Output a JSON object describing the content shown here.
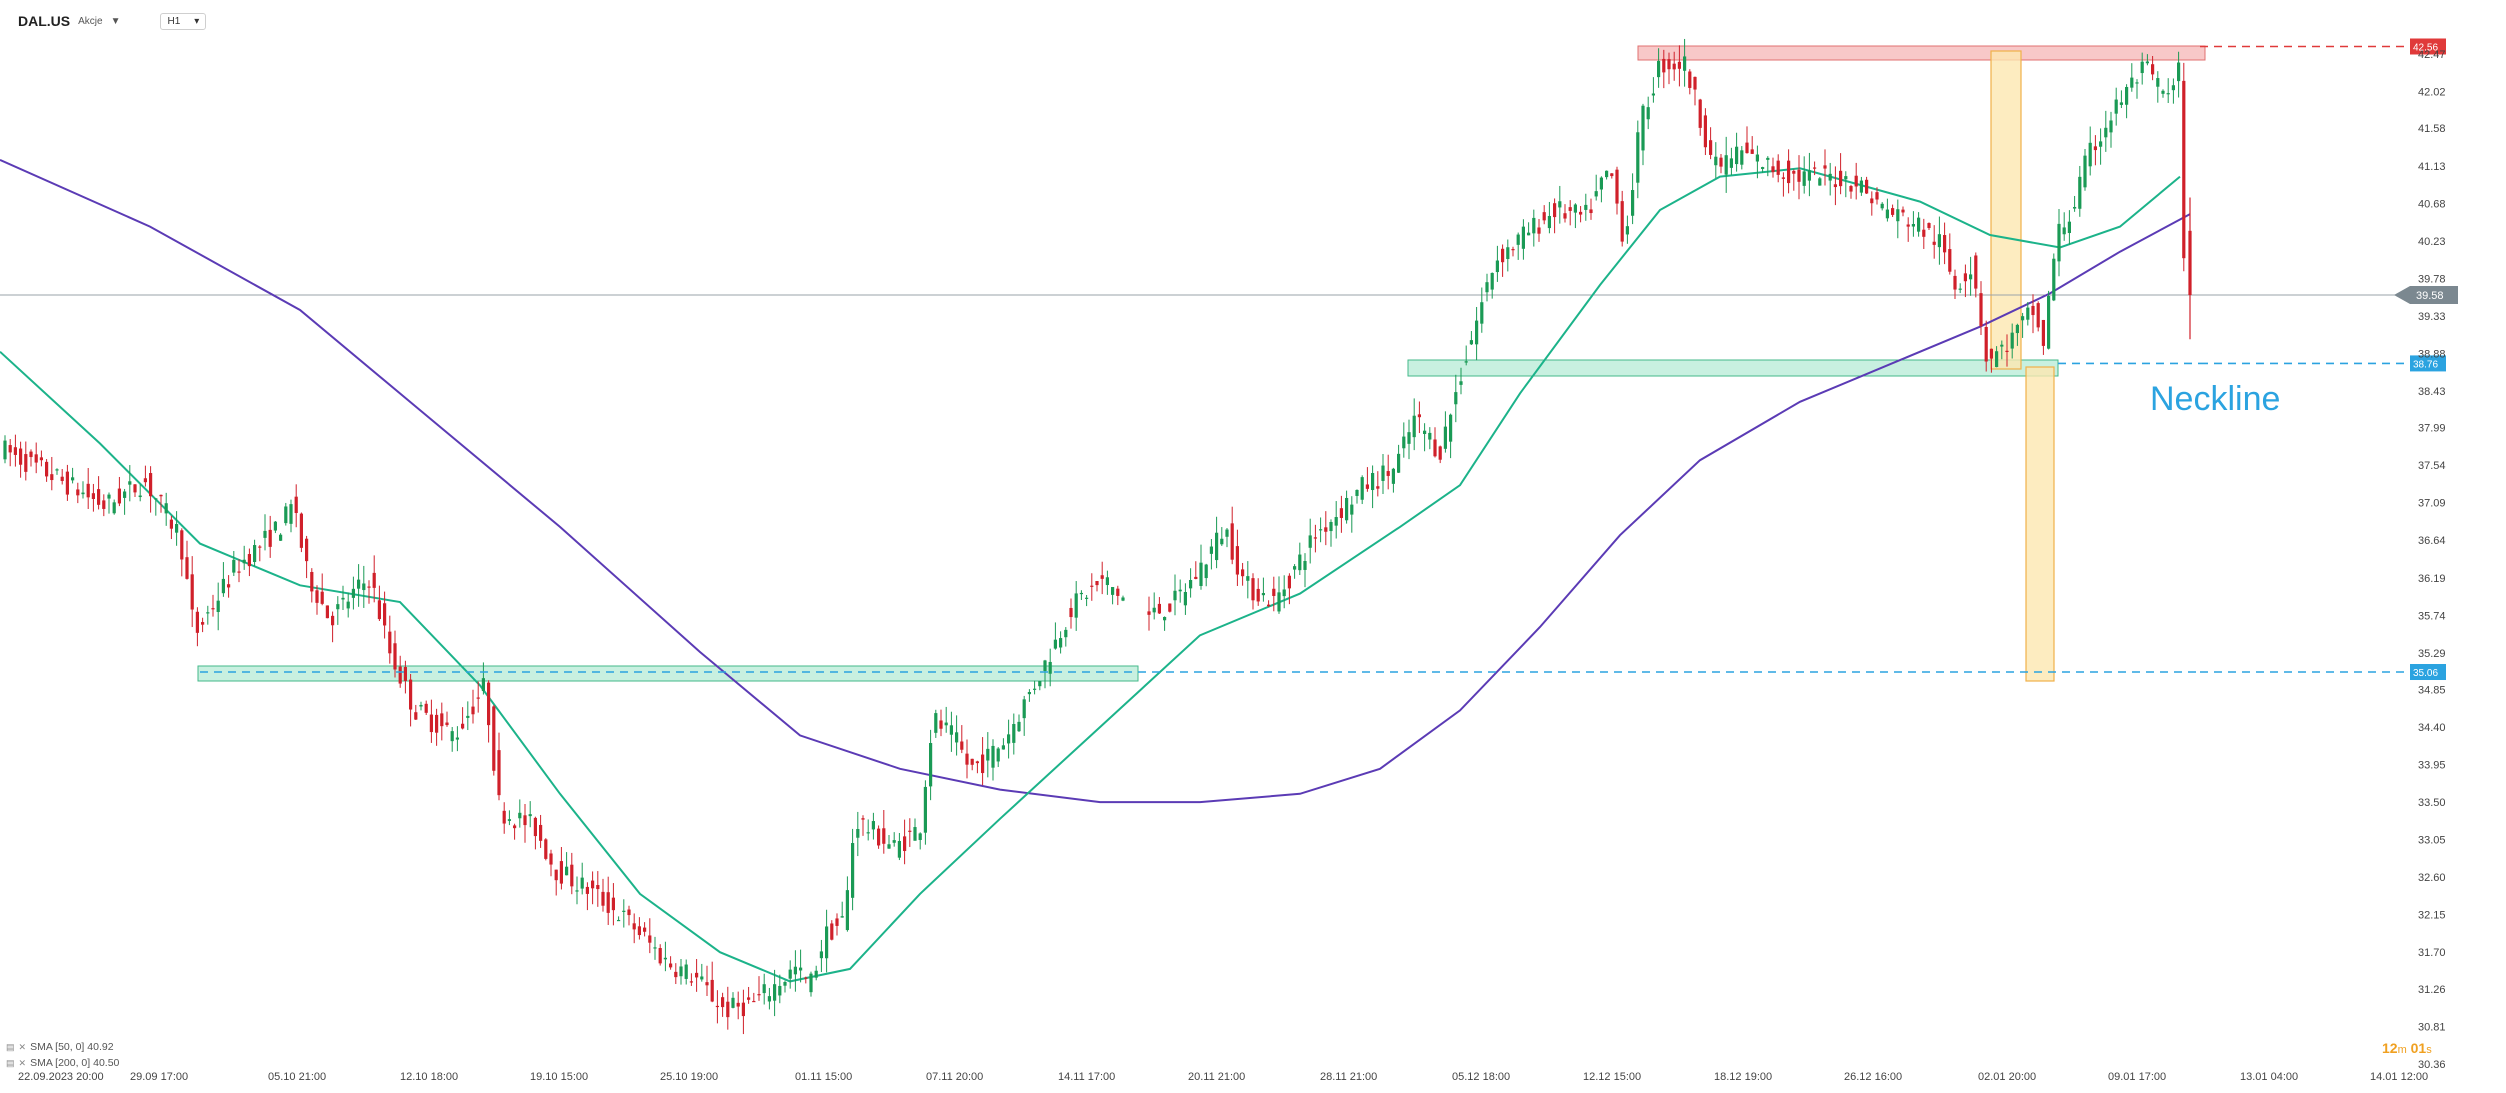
{
  "header": {
    "symbol": "DAL.US",
    "market": "Akcje",
    "timeframe": "H1"
  },
  "legend": [
    {
      "label": "SMA [50, 0] 40.92",
      "color": "#1cb38a"
    },
    {
      "label": "SMA [200, 0] 40.50",
      "color": "#5b3bb5"
    }
  ],
  "timer": {
    "minutes": "12",
    "minutes_unit": "m",
    "seconds": "01",
    "seconds_unit": "s"
  },
  "annotation": {
    "neckline": "Neckline"
  },
  "price_tags": {
    "current": "39.58",
    "resistance": "42.56",
    "neckline": "38.76",
    "target": "35.06"
  },
  "colors": {
    "bull": "#1a9a55",
    "bear": "#d0202a",
    "sma50": "#1cb38a",
    "sma200": "#5b3bb5",
    "resistance_zone": "#f4a3a3",
    "support_zone": "#9be3c7",
    "measure_zone": "#fce7b0",
    "neckline": "#2ba3e0",
    "current_tag": "#7b8890",
    "resistance_tag": "#e03a3a",
    "neckline_tag": "#2ba3e0"
  },
  "chart_data": {
    "type": "candlestick",
    "y_ticks": [
      "42.47",
      "42.02",
      "41.58",
      "41.13",
      "40.68",
      "40.23",
      "39.78",
      "39.33",
      "38.88",
      "38.43",
      "37.99",
      "37.54",
      "37.09",
      "36.64",
      "36.19",
      "35.74",
      "35.29",
      "34.85",
      "34.40",
      "33.95",
      "33.50",
      "33.05",
      "32.60",
      "32.15",
      "31.70",
      "31.26",
      "30.81",
      "30.36"
    ],
    "x_ticks": [
      "22.09.2023 20:00",
      "29.09 17:00",
      "05.10 21:00",
      "12.10 18:00",
      "19.10 15:00",
      "25.10 19:00",
      "01.11 15:00",
      "07.11 20:00",
      "14.11 17:00",
      "20.11 21:00",
      "28.11 21:00",
      "05.12 18:00",
      "12.12 15:00",
      "18.12 19:00",
      "26.12 16:00",
      "02.01 20:00",
      "09.01 17:00",
      "13.01 04:00",
      "14.01 12:00"
    ],
    "ylim": [
      30.36,
      42.47
    ],
    "current_price": 39.58,
    "levels": {
      "resistance": 42.56,
      "neckline": 38.76,
      "target": 35.06
    },
    "series": [
      {
        "name": "SMA [50, 0] 40.92",
        "color": "#1cb38a"
      },
      {
        "name": "SMA [200, 0] 40.50",
        "color": "#5b3bb5"
      }
    ]
  }
}
